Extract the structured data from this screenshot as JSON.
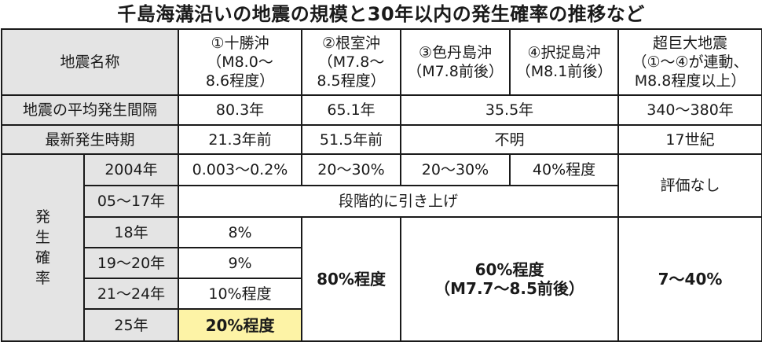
{
  "title": "千島海溝沿いの地震の規模と30年以内の発生確率の推移など",
  "header": {
    "label": "地震名称",
    "cols": [
      [
        "①十勝沖",
        "（M8.0～",
        "8.6程度）"
      ],
      [
        "②根室沖",
        "（M7.8～",
        "8.5程度）"
      ],
      [
        "③色丹島沖",
        "（M7.8前後）"
      ],
      [
        "④択捉島沖",
        "（M8.1前後）"
      ],
      [
        "超巨大地震",
        "（①～④が連動、",
        "M8.8程度以上）"
      ]
    ]
  },
  "interval": {
    "label": "地震の平均発生間隔",
    "tokachi": "80.3年",
    "nemuro": "65.1年",
    "shikotan_etorofu": "35.5年",
    "mega": "340～380年"
  },
  "latest": {
    "label": "最新発生時期",
    "tokachi": "21.3年前",
    "nemuro": "51.5年前",
    "shikotan_etorofu": "不明",
    "mega": "17世紀"
  },
  "probability": {
    "label_chars": [
      "発",
      "生",
      "確",
      "率"
    ],
    "rows": [
      {
        "year": "2004年"
      },
      {
        "year": "05～17年"
      },
      {
        "year": "18年"
      },
      {
        "year": "19～20年"
      },
      {
        "year": "21～24年"
      },
      {
        "year": "25年"
      }
    ],
    "y2004": {
      "tokachi": "0.003～0.2%",
      "nemuro": "20～30%",
      "shikotan": "20～30%",
      "etorofu": "40%程度"
    },
    "gradual": "段階的に引き上げ",
    "mega_eval": "評価なし",
    "tokachi_18": "8%",
    "tokachi_19_20": "9%",
    "tokachi_21_24": "10%程度",
    "tokachi_25": "20%程度",
    "nemuro_recent": "80%程度",
    "shikotan_etorofu_recent": [
      "60%程度",
      "（M7.7～8.5前後）"
    ],
    "mega_recent": "7～40%"
  },
  "colors": {
    "header_bg": "#e4e4e4",
    "highlight_bg": "#fdf3a6",
    "border": "#1a1a1a"
  }
}
